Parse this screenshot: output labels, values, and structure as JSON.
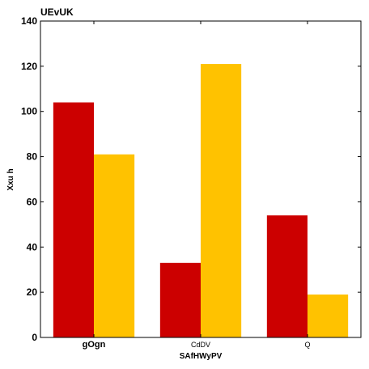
{
  "chart_data": {
    "type": "bar",
    "title": "UEvUK",
    "xlabel": "SAfHWyPV",
    "ylabel": "Xxu h",
    "categories": [
      "gOgn",
      "CdDV",
      "Q"
    ],
    "series": [
      {
        "values": [
          104,
          33,
          54
        ],
        "color": "#cc0000"
      },
      {
        "values": [
          81,
          121,
          19
        ],
        "color": "#ffc200"
      }
    ],
    "ylim": [
      0,
      140
    ],
    "yticks": [
      0,
      20,
      40,
      60,
      80,
      100,
      120,
      140
    ],
    "grid": false,
    "legend": "none"
  }
}
